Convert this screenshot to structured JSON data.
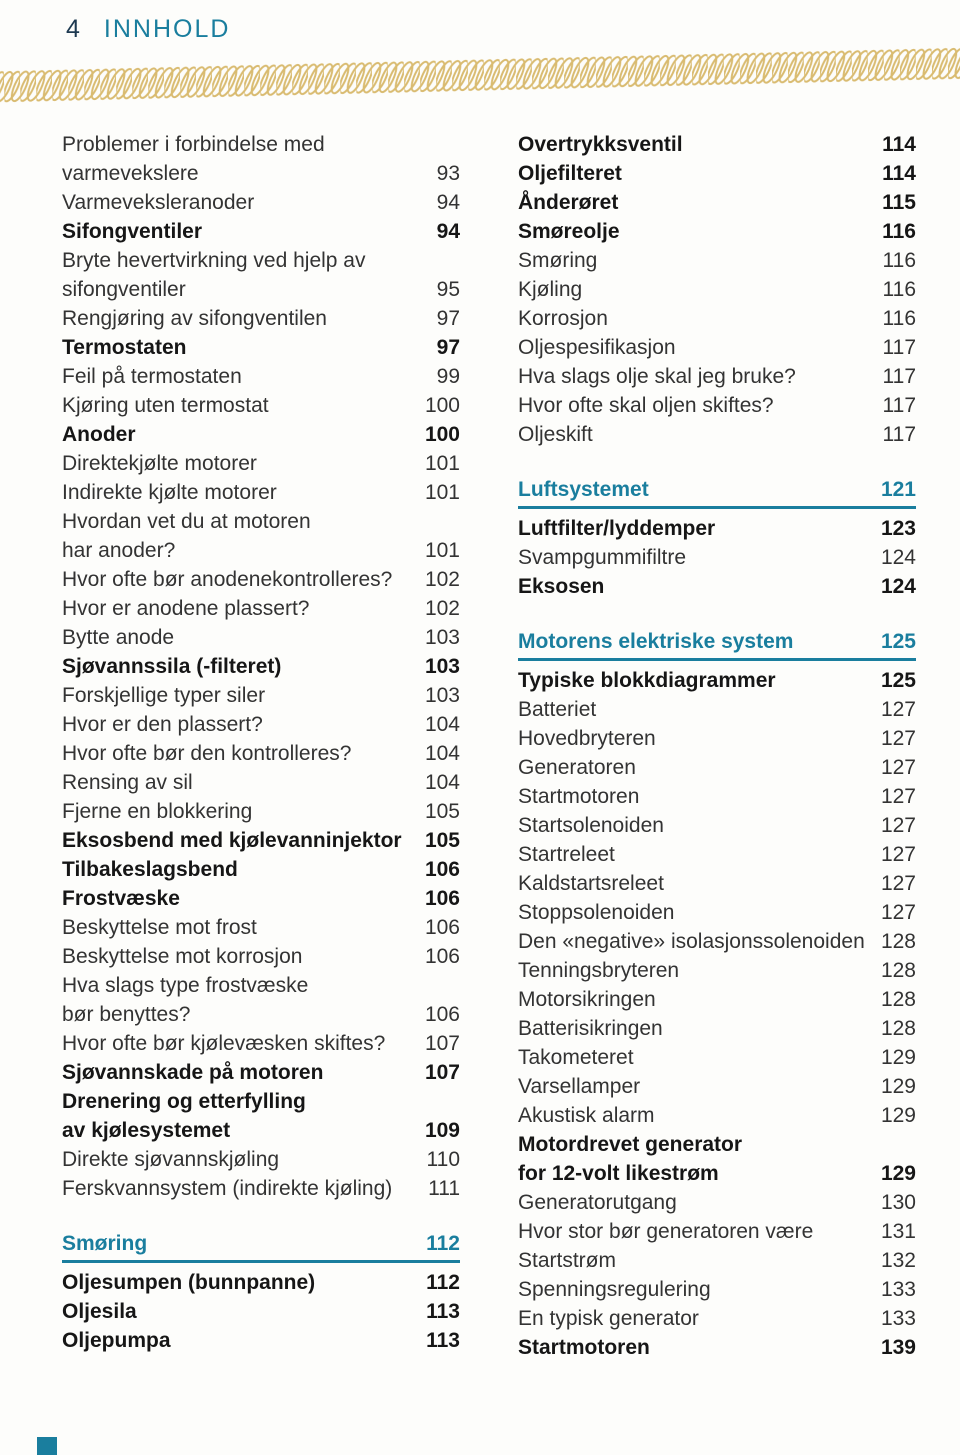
{
  "header": {
    "page_number": "4",
    "title": "INNHOLD"
  },
  "colors": {
    "teal": "#1a7e9e",
    "rope": "#d9bb70",
    "text": "#333333",
    "bold_text": "#161616",
    "navy": "#1d3950",
    "background": "#fdfdfb"
  },
  "toc": {
    "left": [
      {
        "lines": [
          "Problemer i forbindelse med",
          "varmevekslere"
        ],
        "page": "93",
        "style": "normal"
      },
      {
        "lines": [
          "Varmeveksleranoder"
        ],
        "page": "94",
        "style": "normal"
      },
      {
        "lines": [
          "Sifongventiler"
        ],
        "page": "94",
        "style": "bold"
      },
      {
        "lines": [
          "Bryte hevertvirkning ved hjelp av",
          "sifongventiler"
        ],
        "page": "95",
        "style": "normal"
      },
      {
        "lines": [
          "Rengjøring av sifongventilen"
        ],
        "page": "97",
        "style": "normal"
      },
      {
        "lines": [
          "Termostaten"
        ],
        "page": "97",
        "style": "bold"
      },
      {
        "lines": [
          "Feil på termostaten"
        ],
        "page": "99",
        "style": "normal"
      },
      {
        "lines": [
          "Kjøring uten termostat"
        ],
        "page": "100",
        "style": "normal"
      },
      {
        "lines": [
          "Anoder"
        ],
        "page": "100",
        "style": "bold"
      },
      {
        "lines": [
          "Direktekjølte motorer"
        ],
        "page": "101",
        "style": "normal"
      },
      {
        "lines": [
          "Indirekte kjølte motorer"
        ],
        "page": "101",
        "style": "normal"
      },
      {
        "lines": [
          "Hvordan vet du at motoren",
          "har anoder?"
        ],
        "page": "101",
        "style": "normal"
      },
      {
        "lines": [
          "Hvor ofte bør anodenekontrolleres?"
        ],
        "page": "102",
        "style": "normal"
      },
      {
        "lines": [
          "Hvor er anodene plassert?"
        ],
        "page": "102",
        "style": "normal"
      },
      {
        "lines": [
          "Bytte anode"
        ],
        "page": "103",
        "style": "normal"
      },
      {
        "lines": [
          "Sjøvannssila (-filteret)"
        ],
        "page": "103",
        "style": "bold"
      },
      {
        "lines": [
          "Forskjellige typer siler"
        ],
        "page": "103",
        "style": "normal"
      },
      {
        "lines": [
          "Hvor er den plassert?"
        ],
        "page": "104",
        "style": "normal"
      },
      {
        "lines": [
          "Hvor ofte bør den kontrolleres?"
        ],
        "page": "104",
        "style": "normal"
      },
      {
        "lines": [
          "Rensing av sil"
        ],
        "page": "104",
        "style": "normal"
      },
      {
        "lines": [
          "Fjerne en blokkering"
        ],
        "page": "105",
        "style": "normal"
      },
      {
        "lines": [
          "Eksosbend med kjølevanninjektor"
        ],
        "page": "105",
        "style": "bold"
      },
      {
        "lines": [
          "Tilbakeslagsbend"
        ],
        "page": "106",
        "style": "bold"
      },
      {
        "lines": [
          "Frostvæske"
        ],
        "page": "106",
        "style": "bold"
      },
      {
        "lines": [
          "Beskyttelse mot frost"
        ],
        "page": "106",
        "style": "normal"
      },
      {
        "lines": [
          "Beskyttelse mot korrosjon"
        ],
        "page": "106",
        "style": "normal"
      },
      {
        "lines": [
          "Hva slags type frostvæske",
          "bør benyttes?"
        ],
        "page": "106",
        "style": "normal"
      },
      {
        "lines": [
          "Hvor ofte bør kjølevæsken skiftes?"
        ],
        "page": "107",
        "style": "normal"
      },
      {
        "lines": [
          "Sjøvannskade på motoren"
        ],
        "page": "107",
        "style": "bold"
      },
      {
        "lines": [
          "Drenering og etterfylling",
          "av kjølesystemet"
        ],
        "page": "109",
        "style": "bold"
      },
      {
        "lines": [
          "Direkte sjøvannskjøling"
        ],
        "page": "110",
        "style": "normal"
      },
      {
        "lines": [
          "Ferskvannsystem (indirekte kjøling)"
        ],
        "page": "111",
        "style": "normal"
      },
      {
        "lines": [
          "Smøring"
        ],
        "page": "112",
        "style": "section",
        "gap_before": true
      },
      {
        "lines": [
          "Oljesumpen (bunnpanne)"
        ],
        "page": "112",
        "style": "bold"
      },
      {
        "lines": [
          "Oljesila"
        ],
        "page": "113",
        "style": "bold"
      },
      {
        "lines": [
          "Oljepumpa"
        ],
        "page": "113",
        "style": "bold"
      }
    ],
    "right": [
      {
        "lines": [
          "Overtrykksventil"
        ],
        "page": "114",
        "style": "bold"
      },
      {
        "lines": [
          "Oljefilteret"
        ],
        "page": "114",
        "style": "bold"
      },
      {
        "lines": [
          "Ånderøret"
        ],
        "page": "115",
        "style": "bold"
      },
      {
        "lines": [
          "Smøreolje"
        ],
        "page": "116",
        "style": "bold"
      },
      {
        "lines": [
          "Smøring"
        ],
        "page": "116",
        "style": "normal"
      },
      {
        "lines": [
          "Kjøling"
        ],
        "page": "116",
        "style": "normal"
      },
      {
        "lines": [
          "Korrosjon"
        ],
        "page": "116",
        "style": "normal"
      },
      {
        "lines": [
          "Oljespesifikasjon"
        ],
        "page": "117",
        "style": "normal"
      },
      {
        "lines": [
          "Hva slags olje skal jeg bruke?"
        ],
        "page": "117",
        "style": "normal"
      },
      {
        "lines": [
          "Hvor ofte skal oljen skiftes?"
        ],
        "page": "117",
        "style": "normal"
      },
      {
        "lines": [
          "Oljeskift"
        ],
        "page": "117",
        "style": "normal"
      },
      {
        "lines": [
          "Luftsystemet"
        ],
        "page": "121",
        "style": "section",
        "gap_before": true
      },
      {
        "lines": [
          "Luftfilter/lyddemper"
        ],
        "page": "123",
        "style": "bold"
      },
      {
        "lines": [
          "Svampgummifiltre"
        ],
        "page": "124",
        "style": "normal"
      },
      {
        "lines": [
          "Eksosen"
        ],
        "page": "124",
        "style": "bold"
      },
      {
        "lines": [
          "Motorens elektriske system"
        ],
        "page": "125",
        "style": "section",
        "gap_before": true
      },
      {
        "lines": [
          "Typiske blokkdiagrammer"
        ],
        "page": "125",
        "style": "bold"
      },
      {
        "lines": [
          "Batteriet"
        ],
        "page": "127",
        "style": "normal"
      },
      {
        "lines": [
          "Hovedbryteren"
        ],
        "page": "127",
        "style": "normal"
      },
      {
        "lines": [
          "Generatoren"
        ],
        "page": "127",
        "style": "normal"
      },
      {
        "lines": [
          "Startmotoren"
        ],
        "page": "127",
        "style": "normal"
      },
      {
        "lines": [
          "Startsolenoiden"
        ],
        "page": "127",
        "style": "normal"
      },
      {
        "lines": [
          "Startreleet"
        ],
        "page": "127",
        "style": "normal"
      },
      {
        "lines": [
          "Kaldstartsreleet"
        ],
        "page": "127",
        "style": "normal"
      },
      {
        "lines": [
          "Stoppsolenoiden"
        ],
        "page": "127",
        "style": "normal"
      },
      {
        "lines": [
          "Den «negative» isolasjonssolenoiden"
        ],
        "page": "128",
        "style": "normal"
      },
      {
        "lines": [
          "Tenningsbryteren"
        ],
        "page": "128",
        "style": "normal"
      },
      {
        "lines": [
          "Motorsikringen"
        ],
        "page": "128",
        "style": "normal"
      },
      {
        "lines": [
          "Batterisikringen"
        ],
        "page": "128",
        "style": "normal"
      },
      {
        "lines": [
          "Takometeret"
        ],
        "page": "129",
        "style": "normal"
      },
      {
        "lines": [
          "Varsellamper"
        ],
        "page": "129",
        "style": "normal"
      },
      {
        "lines": [
          "Akustisk alarm"
        ],
        "page": "129",
        "style": "normal"
      },
      {
        "lines": [
          "Motordrevet generator",
          "for 12-volt likestrøm"
        ],
        "page": "129",
        "style": "bold"
      },
      {
        "lines": [
          "Generatorutgang"
        ],
        "page": "130",
        "style": "normal"
      },
      {
        "lines": [
          "Hvor stor bør generatoren være"
        ],
        "page": "131",
        "style": "normal"
      },
      {
        "lines": [
          "Startstrøm"
        ],
        "page": "132",
        "style": "normal"
      },
      {
        "lines": [
          "Spenningsregulering"
        ],
        "page": "133",
        "style": "normal"
      },
      {
        "lines": [
          "En typisk generator"
        ],
        "page": "133",
        "style": "normal"
      },
      {
        "lines": [
          "Startmotoren"
        ],
        "page": "139",
        "style": "bold"
      }
    ]
  }
}
